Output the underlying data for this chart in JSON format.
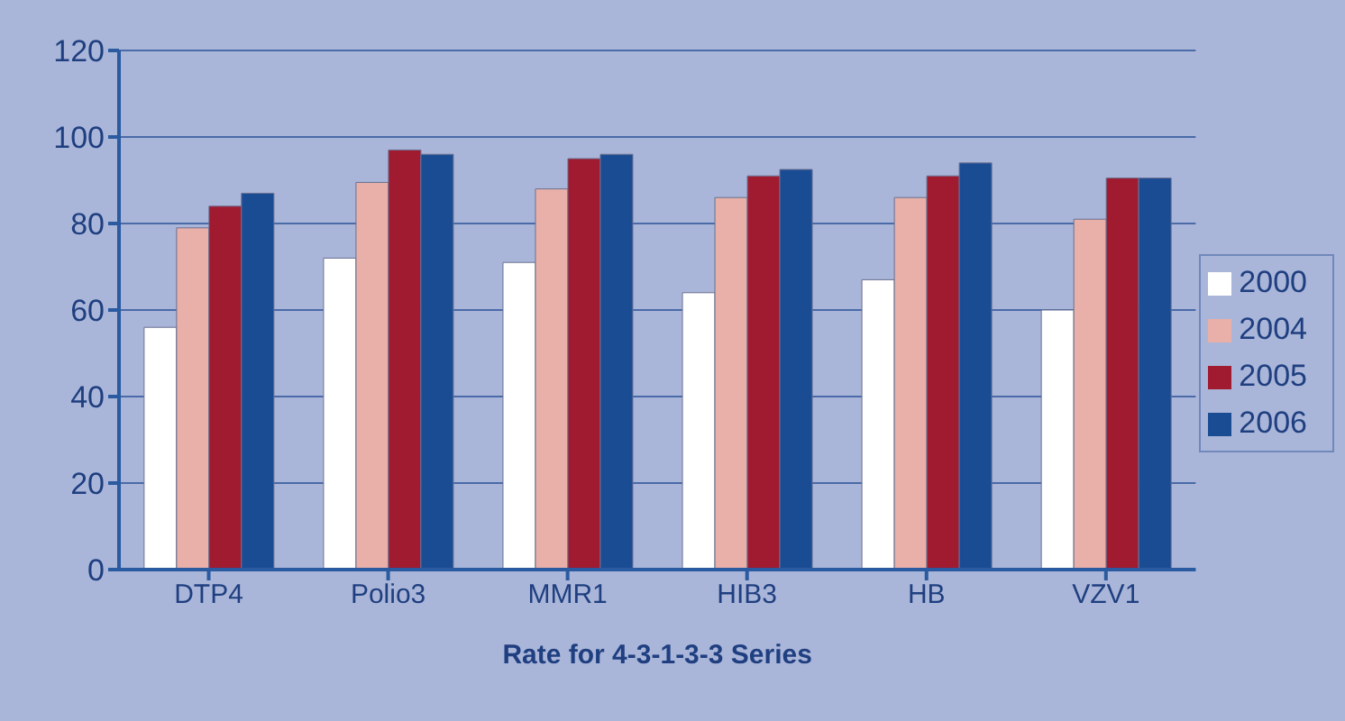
{
  "chart_data": {
    "type": "bar",
    "xlabel": "Rate for 4-3-1-3-3 Series",
    "categories": [
      "DTP4",
      "Polio3",
      "MMR1",
      "HIB3",
      "HB",
      "VZV1"
    ],
    "series": [
      {
        "name": "2000",
        "color": "#ffffff",
        "values": [
          56,
          72,
          71,
          64,
          67,
          60
        ]
      },
      {
        "name": "2004",
        "color": "#e8b0a8",
        "values": [
          79,
          89.5,
          88,
          86,
          86,
          81
        ]
      },
      {
        "name": "2005",
        "color": "#a01a30",
        "values": [
          84,
          97,
          95,
          91,
          91,
          90.5
        ]
      },
      {
        "name": "2006",
        "color": "#1a4c94",
        "values": [
          87,
          96,
          96,
          92.5,
          94,
          90.5
        ]
      }
    ],
    "ylim": [
      0,
      120
    ],
    "yticks": [
      0,
      20,
      40,
      60,
      80,
      100,
      120
    ],
    "grid": "y",
    "legend": "right"
  }
}
